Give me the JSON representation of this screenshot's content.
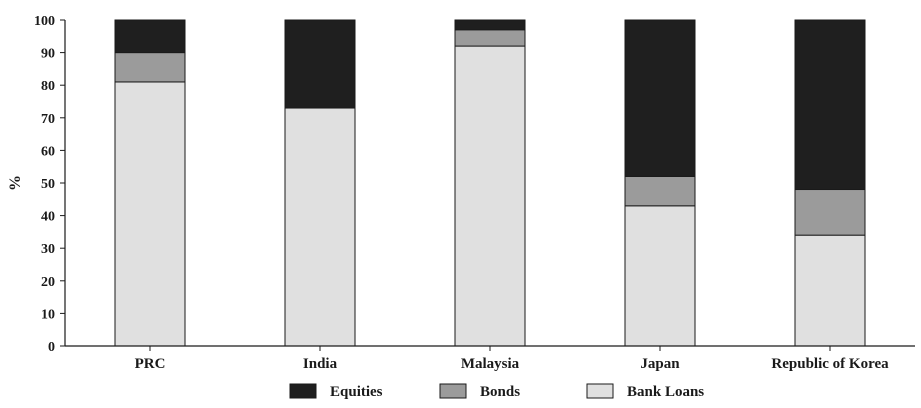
{
  "chart_data": {
    "type": "bar",
    "stacked": true,
    "categories": [
      "PRC",
      "India",
      "Malaysia",
      "Japan",
      "Republic of Korea"
    ],
    "series": [
      {
        "name": "Bank Loans",
        "color": "#e0e0e0",
        "values": [
          81,
          73,
          92,
          43,
          34
        ]
      },
      {
        "name": "Bonds",
        "color": "#9b9b9b",
        "values": [
          9,
          0,
          5,
          9,
          14
        ]
      },
      {
        "name": "Equities",
        "color": "#1f1f1f",
        "values": [
          10,
          27,
          3,
          48,
          52
        ]
      }
    ],
    "legend_order": [
      "Equities",
      "Bonds",
      "Bank Loans"
    ],
    "ylabel": "%",
    "ylim": [
      0,
      100
    ],
    "yticks": [
      "0",
      "10",
      "20",
      "30",
      "40",
      "50",
      "60",
      "70",
      "80",
      "90",
      "100"
    ],
    "grid": false,
    "legend_position": "bottom"
  }
}
